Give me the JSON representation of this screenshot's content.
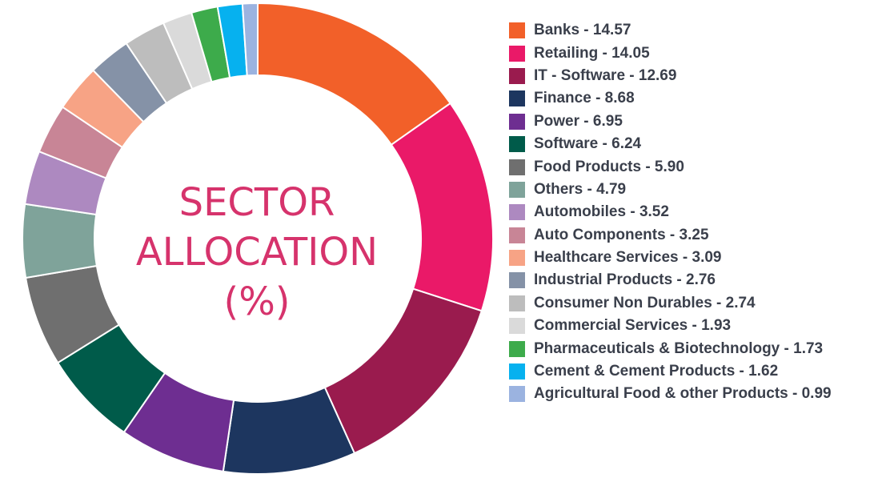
{
  "chart_data": {
    "type": "pie",
    "title_lines": [
      "SECTOR",
      "ALLOCATION",
      "(%)"
    ],
    "slices": [
      {
        "label": "Banks - 14.57",
        "name": "Banks",
        "value": 14.57,
        "color": "#f26029"
      },
      {
        "label": "Retailing - 14.05",
        "name": "Retailing",
        "value": 14.05,
        "color": "#ea1968"
      },
      {
        "label": "IT - Software - 12.69",
        "name": "IT - Software",
        "value": 12.69,
        "color": "#9a1b4e"
      },
      {
        "label": "Finance - 8.68",
        "name": "Finance",
        "value": 8.68,
        "color": "#1d365f"
      },
      {
        "label": "Power - 6.95",
        "name": "Power",
        "value": 6.95,
        "color": "#6e2e91"
      },
      {
        "label": "Software - 6.24",
        "name": "Software",
        "value": 6.24,
        "color": "#005b4a"
      },
      {
        "label": "Food Products - 5.90",
        "name": "Food Products",
        "value": 5.9,
        "color": "#6f6f6f"
      },
      {
        "label": "Others - 4.79",
        "name": "Others",
        "value": 4.79,
        "color": "#7fa39a"
      },
      {
        "label": "Automobiles - 3.52",
        "name": "Automobiles",
        "value": 3.52,
        "color": "#ad89c0"
      },
      {
        "label": "Auto Components - 3.25",
        "name": "Auto Components",
        "value": 3.25,
        "color": "#c88596"
      },
      {
        "label": "Healthcare Services - 3.09",
        "name": "Healthcare Services",
        "value": 3.09,
        "color": "#f7a385"
      },
      {
        "label": "Industrial Products - 2.76",
        "name": "Industrial Products",
        "value": 2.76,
        "color": "#8592a7"
      },
      {
        "label": "Consumer Non Durables - 2.74",
        "name": "Consumer Non Durables",
        "value": 2.74,
        "color": "#bdbdbd"
      },
      {
        "label": "Commercial Services - 1.93",
        "name": "Commercial Services",
        "value": 1.93,
        "color": "#dadada"
      },
      {
        "label": "Pharmaceuticals & Biotechnology - 1.73",
        "name": "Pharmaceuticals & Biotechnology",
        "value": 1.73,
        "color": "#3dab4b"
      },
      {
        "label": "Cement & Cement Products - 1.62",
        "name": "Cement & Cement Products",
        "value": 1.62,
        "color": "#06b1ef"
      },
      {
        "label": "Agricultural Food & other Products - 0.99",
        "name": "Agricultural Food & other Products",
        "value": 0.99,
        "color": "#9bb3e0"
      }
    ],
    "legend_position": "right",
    "title_color": "#d6336c",
    "legend_text_color": "#3a3f4b"
  }
}
